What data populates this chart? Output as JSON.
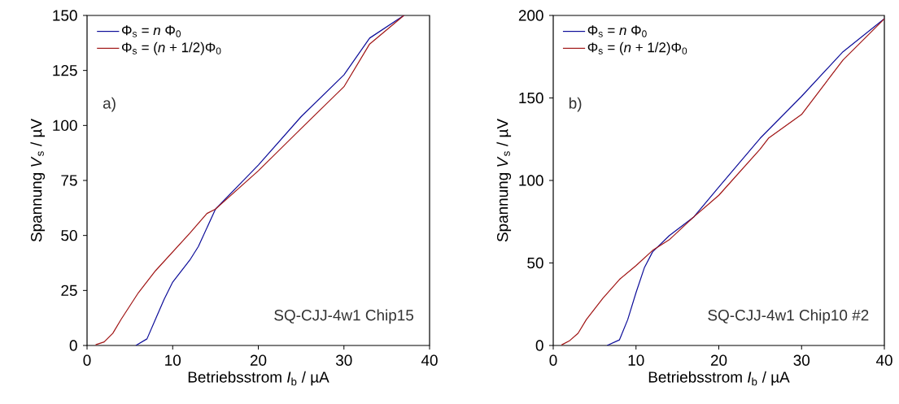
{
  "chart_data": [
    {
      "type": "line",
      "xlabel": "Betriebsstrom *I*$_{b}$ / µA",
      "ylabel": "Spannung *V*$_{s}$ / µV",
      "xlim": [
        0,
        40
      ],
      "ylim": [
        0,
        150
      ],
      "xticks": [
        0,
        10,
        20,
        30,
        40
      ],
      "yticks": [
        0,
        25,
        50,
        75,
        100,
        125,
        150
      ],
      "legend": "top left",
      "grid": false,
      "annotations": [
        "a)",
        "SQ-CJJ-4w1 Chip15"
      ],
      "series": [
        {
          "name": "Φ$_{s}$ = *n* Φ$_{0}$",
          "color": "#0d0d99",
          "x": [
            5.7,
            7,
            8,
            9,
            10,
            12,
            13,
            15,
            20,
            25,
            30,
            33,
            37
          ],
          "values": [
            0,
            3,
            12,
            21,
            28.8,
            38.8,
            45,
            62,
            82,
            104,
            123,
            139.7,
            150
          ]
        },
        {
          "name": "Φ$_{s}$ = (*n* + 1/2)Φ$_{0}$",
          "color": "#a01414",
          "x": [
            1,
            2,
            3,
            4,
            5,
            6,
            8,
            10,
            12,
            14,
            15,
            20,
            25,
            30,
            33,
            37
          ],
          "values": [
            0.3,
            1.6,
            5.5,
            12,
            18,
            24,
            34,
            42.5,
            51,
            60,
            62,
            79.4,
            98.6,
            117.6,
            137,
            150
          ]
        }
      ]
    },
    {
      "type": "line",
      "xlabel": "Betriebsstrom *I*$_{b}$ / µA",
      "ylabel": "Spannung *V*$_{s}$ / µV",
      "xlim": [
        0,
        40
      ],
      "ylim": [
        0,
        200
      ],
      "xticks": [
        0,
        10,
        20,
        30,
        40
      ],
      "yticks": [
        0,
        50,
        100,
        150,
        200
      ],
      "legend": "top left",
      "grid": false,
      "annotations": [
        "b)",
        "SQ-CJJ-4w1 Chip10 #2"
      ],
      "series": [
        {
          "name": "Φ$_{s}$ = *n* Φ$_{0}$",
          "color": "#0d0d99",
          "x": [
            6.5,
            8,
            9,
            10,
            11,
            12,
            14,
            17,
            20,
            25,
            30,
            35,
            40
          ],
          "values": [
            0,
            3.4,
            15.7,
            32,
            47,
            56.7,
            66.5,
            78,
            96,
            125.6,
            151,
            178,
            198
          ]
        },
        {
          "name": "Φ$_{s}$ = (*n* + 1/2)Φ$_{0}$",
          "color": "#a01414",
          "x": [
            1,
            2,
            3,
            4,
            6,
            8,
            10,
            12,
            14,
            17,
            20,
            25,
            26,
            30,
            35,
            40
          ],
          "values": [
            0.3,
            3,
            7.4,
            15.7,
            28.6,
            40,
            48.4,
            57.6,
            64,
            78,
            91,
            119,
            125.6,
            140,
            173,
            198
          ]
        }
      ]
    }
  ]
}
